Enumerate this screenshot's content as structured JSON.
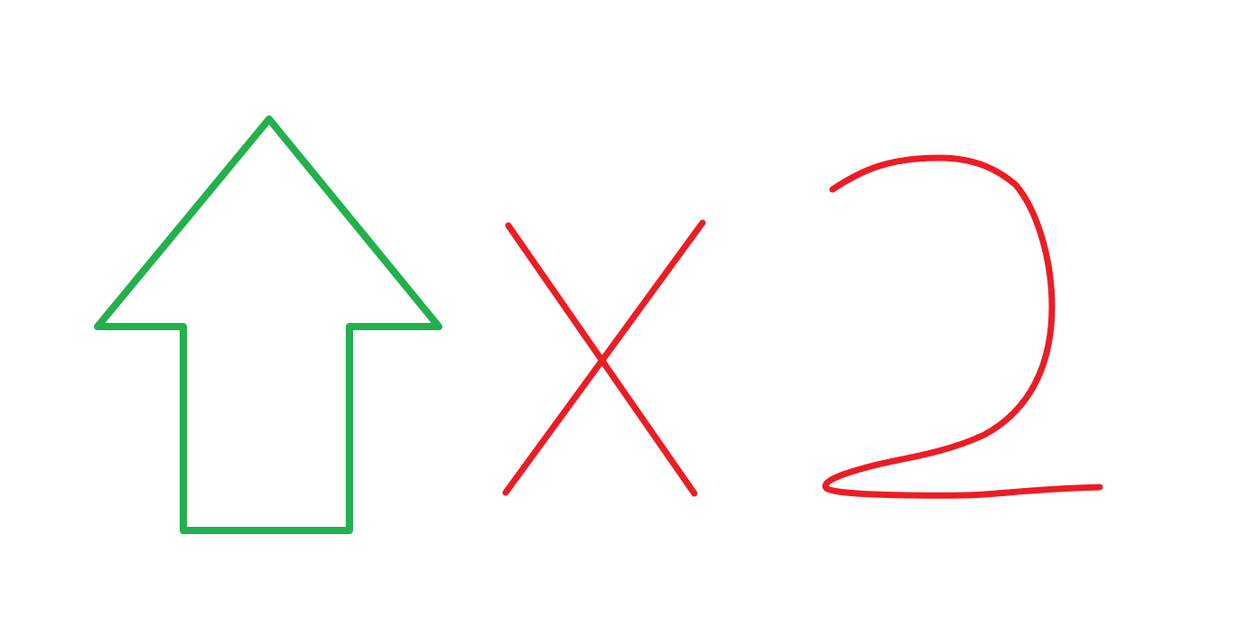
{
  "drawing": {
    "background_color": "#ffffff",
    "arrow": {
      "icon": "up-arrow-outline-icon",
      "color": "#22b14c"
    },
    "multiply": {
      "icon": "multiply-sign-icon",
      "symbol": "×",
      "color": "#ed1c24"
    },
    "number": {
      "value": "2",
      "color": "#ed1c24"
    }
  }
}
